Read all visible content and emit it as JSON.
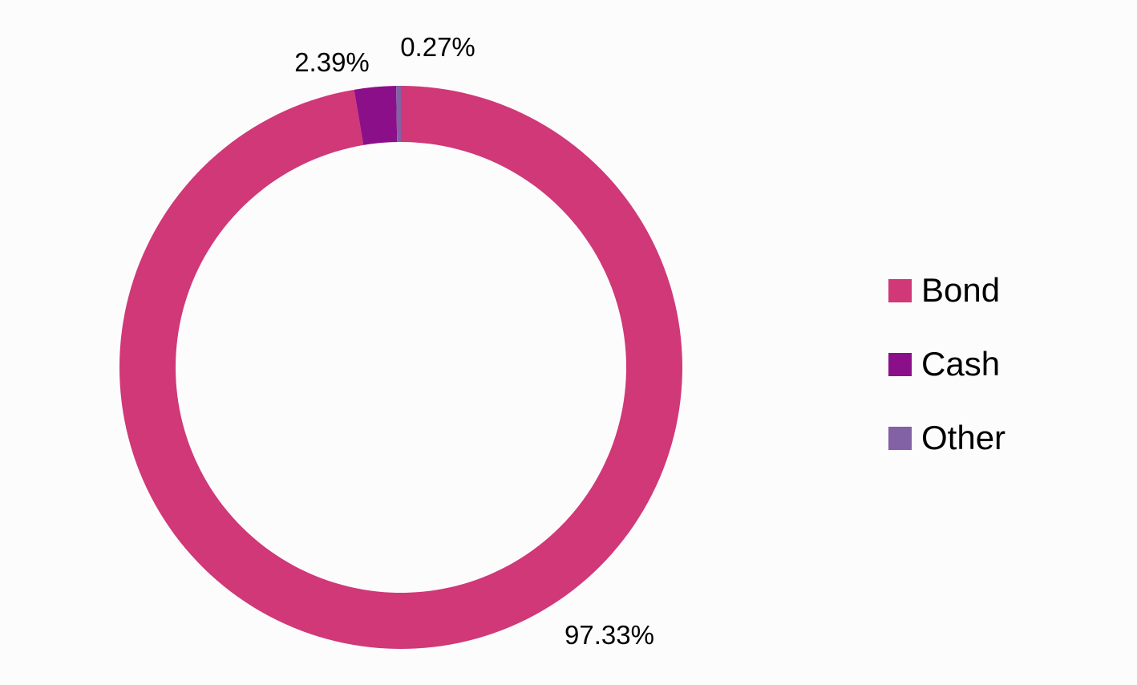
{
  "chart_data": {
    "type": "pie",
    "variant": "donut",
    "categories": [
      "Bond",
      "Cash",
      "Other"
    ],
    "values": [
      97.33,
      2.39,
      0.27
    ],
    "data_labels": [
      "97.33%",
      "2.39%",
      "0.27%"
    ],
    "colors": [
      "#d03878",
      "#8c0f8a",
      "#8361a5"
    ],
    "legend": {
      "position": "right",
      "entries": [
        "Bond",
        "Cash",
        "Other"
      ]
    }
  }
}
